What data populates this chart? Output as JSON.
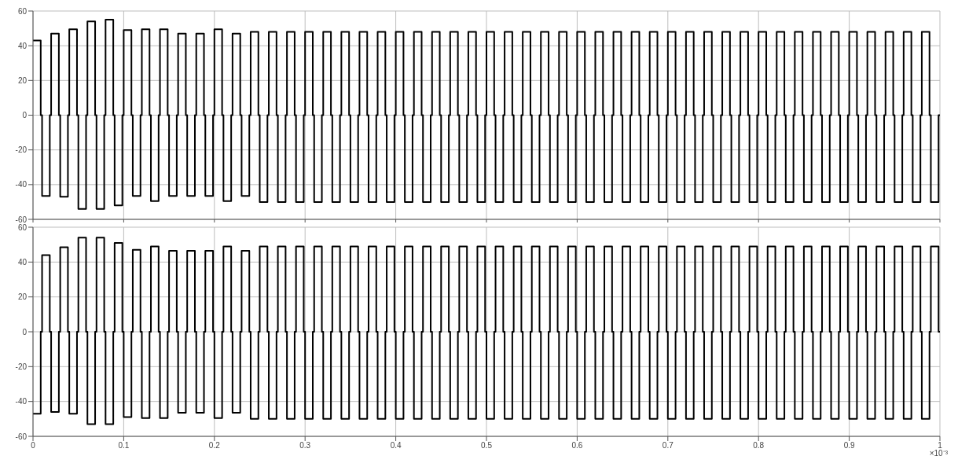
{
  "chart_data": [
    {
      "type": "step",
      "grid": true,
      "tick_labels": "y",
      "xlim": [
        0,
        1
      ],
      "xticks": [
        0,
        0.1,
        0.2,
        0.3,
        0.4,
        0.5,
        0.6,
        0.7,
        0.8,
        0.9,
        1
      ],
      "ylim": [
        -60,
        60
      ],
      "yticks": [
        -60,
        -40,
        -20,
        0,
        20,
        40,
        60
      ],
      "x": [
        0,
        0.0085,
        0.01,
        0.0185,
        0.02,
        0.0285,
        0.03,
        0.0385,
        0.04,
        0.0485,
        0.05,
        0.0585,
        0.06,
        0.0685,
        0.07,
        0.0785,
        0.08,
        0.0885,
        0.09,
        0.0985,
        0.1,
        0.1085,
        0.11,
        0.1185,
        0.12,
        0.1285,
        0.13,
        0.1385,
        0.14,
        0.1485,
        0.15,
        0.1585,
        0.16,
        0.1685,
        0.17,
        0.1785,
        0.18,
        0.1885,
        0.19,
        0.1985,
        0.2,
        0.2085,
        0.21,
        0.2185,
        0.22,
        0.2285,
        0.23,
        0.2385,
        0.24,
        0.2485,
        0.25,
        0.2585,
        0.26,
        0.2685,
        0.27,
        0.2785,
        0.28,
        0.2885,
        0.29,
        0.2985,
        0.3,
        0.3085,
        0.31,
        0.3185,
        0.32,
        0.3285,
        0.33,
        0.3385,
        0.34,
        0.3485,
        0.35,
        0.3585,
        0.36,
        0.3685,
        0.37,
        0.3785,
        0.38,
        0.3885,
        0.39,
        0.3985,
        0.4,
        0.4085,
        0.41,
        0.4185,
        0.42,
        0.4285,
        0.43,
        0.4385,
        0.44,
        0.4485,
        0.45,
        0.4585,
        0.46,
        0.4685,
        0.47,
        0.4785,
        0.48,
        0.4885,
        0.49,
        0.4985,
        0.5,
        0.5085,
        0.51,
        0.5185,
        0.52,
        0.5285,
        0.53,
        0.5385,
        0.54,
        0.5485,
        0.55,
        0.5585,
        0.56,
        0.5685,
        0.57,
        0.5785,
        0.58,
        0.5885,
        0.59,
        0.5985,
        0.6,
        0.6085,
        0.61,
        0.6185,
        0.62,
        0.6285,
        0.63,
        0.6385,
        0.64,
        0.6485,
        0.65,
        0.6585,
        0.66,
        0.6685,
        0.67,
        0.6785,
        0.68,
        0.6885,
        0.69,
        0.6985,
        0.7,
        0.7085,
        0.71,
        0.7185,
        0.72,
        0.7285,
        0.73,
        0.7385,
        0.74,
        0.7485,
        0.75,
        0.7585,
        0.76,
        0.7685,
        0.77,
        0.7785,
        0.78,
        0.7885,
        0.79,
        0.7985,
        0.8,
        0.8085,
        0.81,
        0.8185,
        0.82,
        0.8285,
        0.83,
        0.8385,
        0.84,
        0.8485,
        0.85,
        0.8585,
        0.86,
        0.8685,
        0.87,
        0.8785,
        0.88,
        0.8885,
        0.89,
        0.8985,
        0.9,
        0.9085,
        0.91,
        0.9185,
        0.92,
        0.9285,
        0.93,
        0.9385,
        0.94,
        0.9485,
        0.95,
        0.9585,
        0.96,
        0.9685,
        0.97,
        0.9785,
        0.98,
        0.9885,
        0.99,
        0.9985,
        1
      ],
      "series": [
        {
          "color": "#000000",
          "values": [
            43,
            0,
            -46.5,
            0,
            47,
            0,
            -47,
            0,
            49.5,
            0,
            -54,
            0,
            54,
            0,
            -54,
            0,
            55,
            0,
            -52,
            0,
            49,
            0,
            -46.5,
            0,
            49.5,
            0,
            -49.5,
            0,
            49.5,
            0,
            -46.5,
            0,
            47,
            0,
            -46.5,
            0,
            47,
            0,
            -46.5,
            0,
            49.5,
            0,
            -49.5,
            0,
            47,
            0,
            -46.5,
            0,
            48,
            0,
            -50,
            0,
            48,
            0,
            -50,
            0,
            48,
            0,
            -50,
            0,
            48,
            0,
            -50,
            0,
            48,
            0,
            -50,
            0,
            48,
            0,
            -50,
            0,
            48,
            0,
            -50,
            0,
            48,
            0,
            -50,
            0,
            48,
            0,
            -50,
            0,
            48,
            0,
            -50,
            0,
            48,
            0,
            -50,
            0,
            48,
            0,
            -50,
            0,
            48,
            0,
            -50,
            0,
            48,
            0,
            -50,
            0,
            48,
            0,
            -50,
            0,
            48,
            0,
            -50,
            0,
            48,
            0,
            -50,
            0,
            48,
            0,
            -50,
            0,
            48,
            0,
            -50,
            0,
            48,
            0,
            -50,
            0,
            48,
            0,
            -50,
            0,
            48,
            0,
            -50,
            0,
            48,
            0,
            -50,
            0,
            48,
            0,
            -50,
            0,
            48,
            0,
            -50,
            0,
            48,
            0,
            -50,
            0,
            48,
            0,
            -50,
            0,
            48,
            0,
            -50,
            0,
            48,
            0,
            -50,
            0,
            48,
            0,
            -50,
            0,
            48,
            0,
            -50,
            0,
            48,
            0,
            -50,
            0,
            48,
            0,
            -50,
            0,
            48,
            0,
            -50,
            0,
            48,
            0,
            -50,
            0,
            48,
            0,
            -50,
            0,
            48,
            0,
            -50,
            0,
            48,
            0,
            -50,
            0,
            0
          ]
        }
      ]
    },
    {
      "type": "step",
      "grid": true,
      "xlim": [
        0,
        1
      ],
      "xticks": [
        0,
        0.1,
        0.2,
        0.3,
        0.4,
        0.5,
        0.6,
        0.7,
        0.8,
        0.9,
        1
      ],
      "ylim": [
        -60,
        60
      ],
      "yticks": [
        -60,
        -40,
        -20,
        0,
        20,
        40,
        60
      ],
      "annotations": [
        "×10⁻³"
      ],
      "x": [
        0,
        0.0085,
        0.01,
        0.0185,
        0.02,
        0.0285,
        0.03,
        0.0385,
        0.04,
        0.0485,
        0.05,
        0.0585,
        0.06,
        0.0685,
        0.07,
        0.0785,
        0.08,
        0.0885,
        0.09,
        0.0985,
        0.1,
        0.1085,
        0.11,
        0.1185,
        0.12,
        0.1285,
        0.13,
        0.1385,
        0.14,
        0.1485,
        0.15,
        0.1585,
        0.16,
        0.1685,
        0.17,
        0.1785,
        0.18,
        0.1885,
        0.19,
        0.1985,
        0.2,
        0.2085,
        0.21,
        0.2185,
        0.22,
        0.2285,
        0.23,
        0.2385,
        0.24,
        0.2485,
        0.25,
        0.2585,
        0.26,
        0.2685,
        0.27,
        0.2785,
        0.28,
        0.2885,
        0.29,
        0.2985,
        0.3,
        0.3085,
        0.31,
        0.3185,
        0.32,
        0.3285,
        0.33,
        0.3385,
        0.34,
        0.3485,
        0.35,
        0.3585,
        0.36,
        0.3685,
        0.37,
        0.3785,
        0.38,
        0.3885,
        0.39,
        0.3985,
        0.4,
        0.4085,
        0.41,
        0.4185,
        0.42,
        0.4285,
        0.43,
        0.4385,
        0.44,
        0.4485,
        0.45,
        0.4585,
        0.46,
        0.4685,
        0.47,
        0.4785,
        0.48,
        0.4885,
        0.49,
        0.4985,
        0.5,
        0.5085,
        0.51,
        0.5185,
        0.52,
        0.5285,
        0.53,
        0.5385,
        0.54,
        0.5485,
        0.55,
        0.5585,
        0.56,
        0.5685,
        0.57,
        0.5785,
        0.58,
        0.5885,
        0.59,
        0.5985,
        0.6,
        0.6085,
        0.61,
        0.6185,
        0.62,
        0.6285,
        0.63,
        0.6385,
        0.64,
        0.6485,
        0.65,
        0.6585,
        0.66,
        0.6685,
        0.67,
        0.6785,
        0.68,
        0.6885,
        0.69,
        0.6985,
        0.7,
        0.7085,
        0.71,
        0.7185,
        0.72,
        0.7285,
        0.73,
        0.7385,
        0.74,
        0.7485,
        0.75,
        0.7585,
        0.76,
        0.7685,
        0.77,
        0.7785,
        0.78,
        0.7885,
        0.79,
        0.7985,
        0.8,
        0.8085,
        0.81,
        0.8185,
        0.82,
        0.8285,
        0.83,
        0.8385,
        0.84,
        0.8485,
        0.85,
        0.8585,
        0.86,
        0.8685,
        0.87,
        0.8785,
        0.88,
        0.8885,
        0.89,
        0.8985,
        0.9,
        0.9085,
        0.91,
        0.9185,
        0.92,
        0.9285,
        0.93,
        0.9385,
        0.94,
        0.9485,
        0.95,
        0.9585,
        0.96,
        0.9685,
        0.97,
        0.9785,
        0.98,
        0.9885,
        0.99,
        0.9985,
        1
      ],
      "series": [
        {
          "color": "#000000",
          "values": [
            -47,
            0,
            44,
            0,
            -46,
            0,
            48.5,
            0,
            -47,
            0,
            54,
            0,
            -53,
            0,
            54,
            0,
            -53,
            0,
            51,
            0,
            -49,
            0,
            47,
            0,
            -49.5,
            0,
            49,
            0,
            -49.5,
            0,
            46.5,
            0,
            -46.5,
            0,
            46.5,
            0,
            -46.5,
            0,
            46.5,
            0,
            -49.5,
            0,
            49,
            0,
            -46.5,
            0,
            46.5,
            0,
            -50,
            0,
            49,
            0,
            -50,
            0,
            49,
            0,
            -50,
            0,
            49,
            0,
            -50,
            0,
            49,
            0,
            -50,
            0,
            49,
            0,
            -50,
            0,
            49,
            0,
            -50,
            0,
            49,
            0,
            -50,
            0,
            49,
            0,
            -50,
            0,
            49,
            0,
            -50,
            0,
            49,
            0,
            -50,
            0,
            49,
            0,
            -50,
            0,
            49,
            0,
            -50,
            0,
            49,
            0,
            -50,
            0,
            49,
            0,
            -50,
            0,
            49,
            0,
            -50,
            0,
            49,
            0,
            -50,
            0,
            49,
            0,
            -50,
            0,
            49,
            0,
            -50,
            0,
            49,
            0,
            -50,
            0,
            49,
            0,
            -50,
            0,
            49,
            0,
            -50,
            0,
            49,
            0,
            -50,
            0,
            49,
            0,
            -50,
            0,
            49,
            0,
            -50,
            0,
            49,
            0,
            -50,
            0,
            49,
            0,
            -50,
            0,
            49,
            0,
            -50,
            0,
            49,
            0,
            -50,
            0,
            49,
            0,
            -50,
            0,
            49,
            0,
            -50,
            0,
            49,
            0,
            -50,
            0,
            49,
            0,
            -50,
            0,
            49,
            0,
            -50,
            0,
            49,
            0,
            -50,
            0,
            49,
            0,
            -50,
            0,
            49,
            0,
            -50,
            0,
            49,
            0,
            -50,
            0,
            49,
            0,
            0
          ]
        }
      ]
    }
  ]
}
